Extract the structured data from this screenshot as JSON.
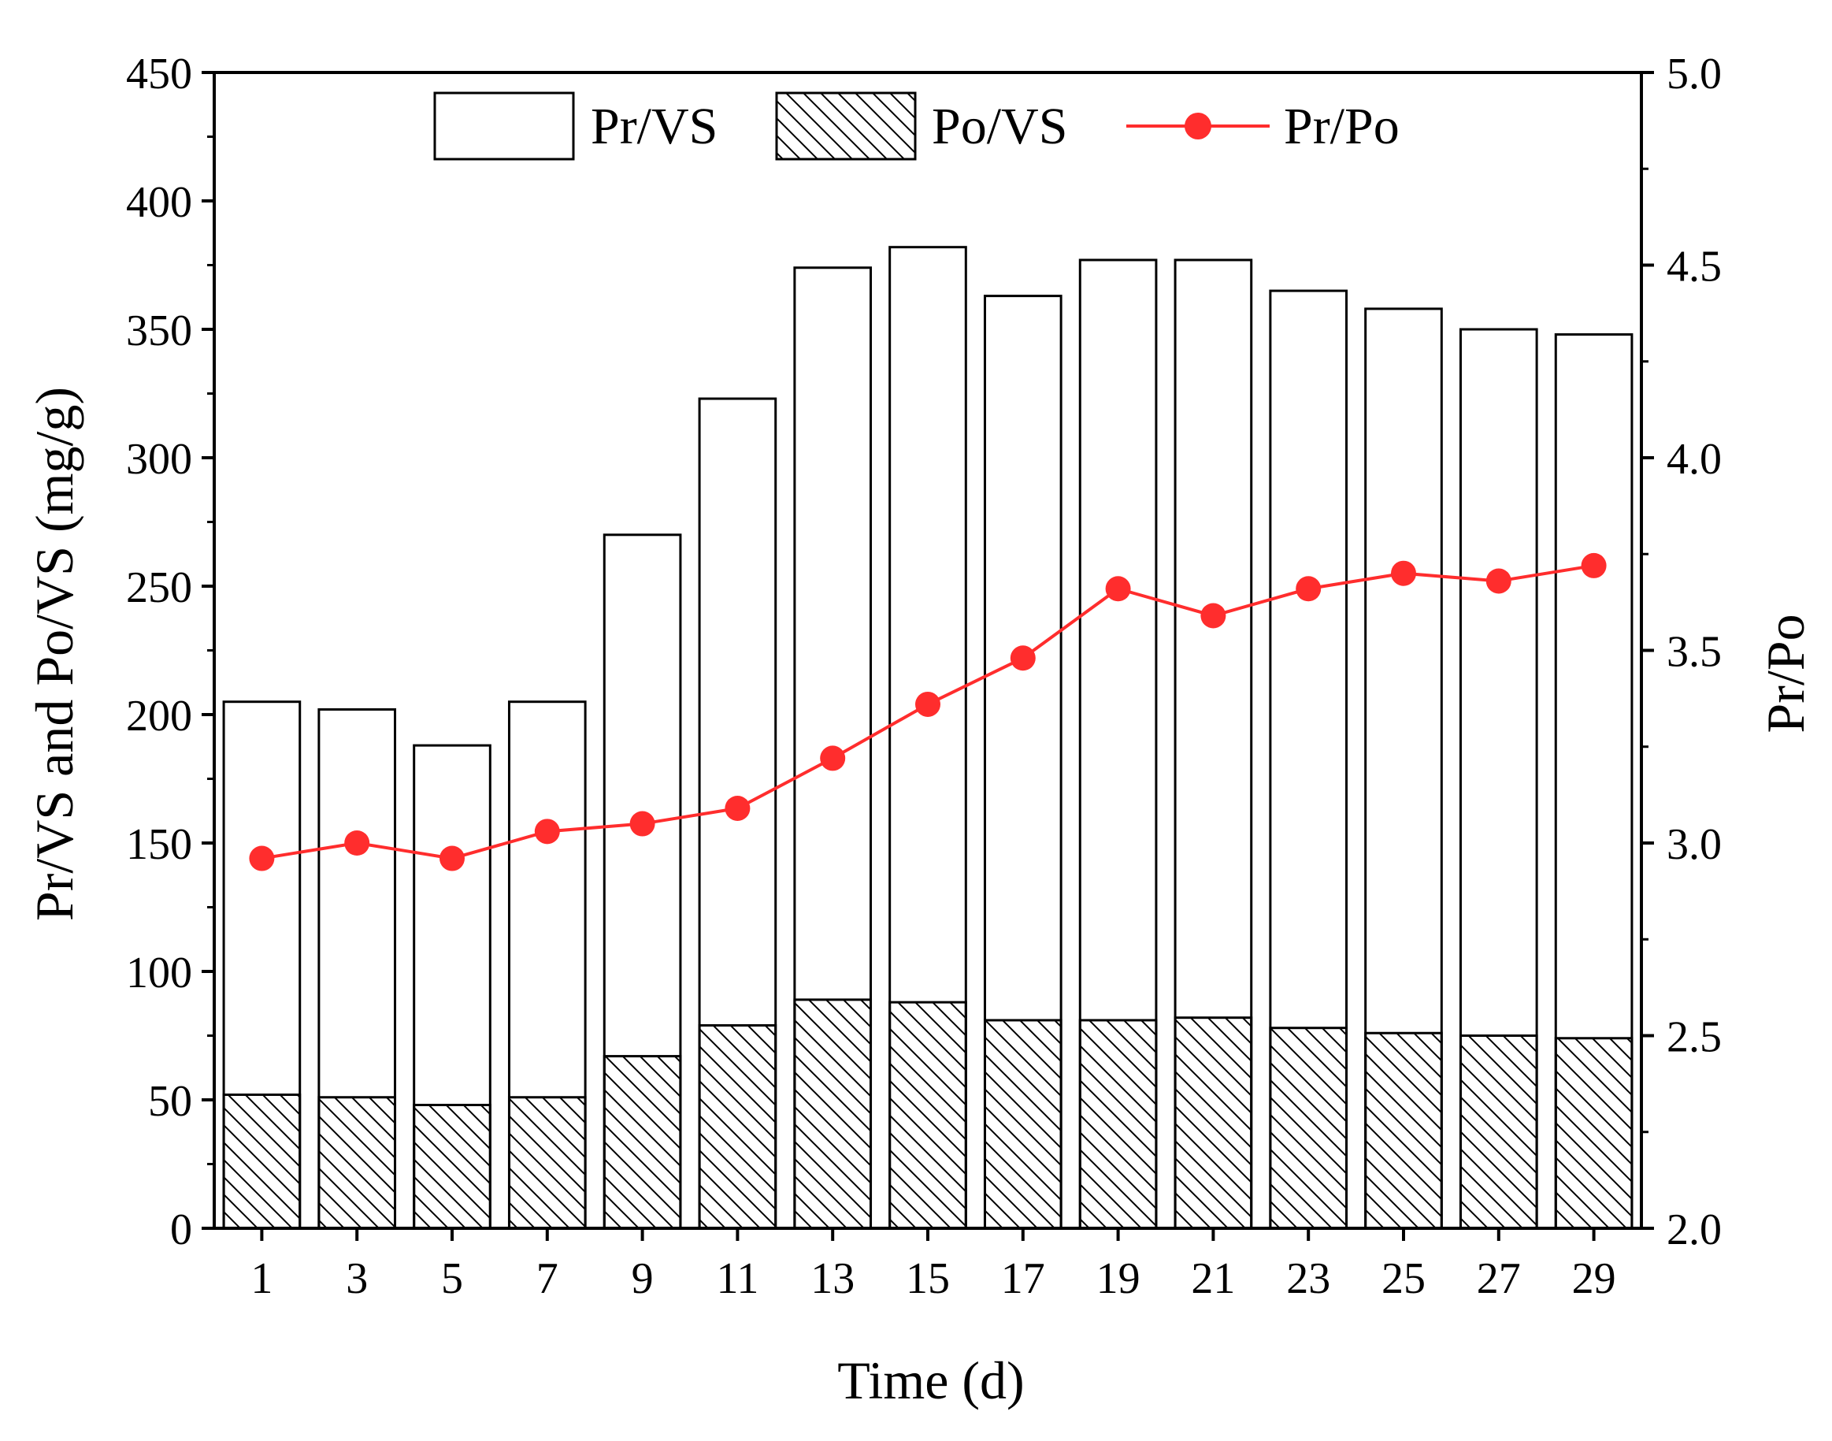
{
  "chart_data": {
    "type": "bar",
    "xlabel": "Time (d)",
    "ylabel": "Pr/VS and Po/VS (mg/g)",
    "y2label": "Pr/Po",
    "categories": [
      "1",
      "3",
      "5",
      "7",
      "9",
      "11",
      "13",
      "15",
      "17",
      "19",
      "21",
      "23",
      "25",
      "27",
      "29"
    ],
    "ylim": [
      0,
      450
    ],
    "yticks": [
      "0",
      "50",
      "100",
      "150",
      "200",
      "250",
      "300",
      "350",
      "400",
      "450"
    ],
    "y2lim": [
      2.0,
      5.0
    ],
    "y2ticks": [
      "2.0",
      "2.5",
      "3.0",
      "3.5",
      "4.0",
      "4.5",
      "5.0"
    ],
    "series": [
      {
        "name": "Pr/VS",
        "type": "bar",
        "fill": "none",
        "values": [
          205,
          202,
          188,
          205,
          270,
          323,
          374,
          382,
          363,
          377,
          377,
          365,
          358,
          350,
          348
        ]
      },
      {
        "name": "Po/VS",
        "type": "bar",
        "fill": "hatched",
        "values": [
          52,
          51,
          48,
          51,
          67,
          79,
          89,
          88,
          81,
          81,
          82,
          78,
          76,
          75,
          74
        ]
      },
      {
        "name": "Pr/Po",
        "type": "line",
        "axis": "right",
        "color": "#ff2d2d",
        "values": [
          2.96,
          3.0,
          2.96,
          3.03,
          3.05,
          3.09,
          3.22,
          3.36,
          3.48,
          3.66,
          3.59,
          3.66,
          3.7,
          3.68,
          3.72
        ]
      }
    ],
    "legend": {
      "position": "top",
      "entries": [
        "Pr/VS",
        "Po/VS",
        "Pr/Po"
      ]
    }
  }
}
